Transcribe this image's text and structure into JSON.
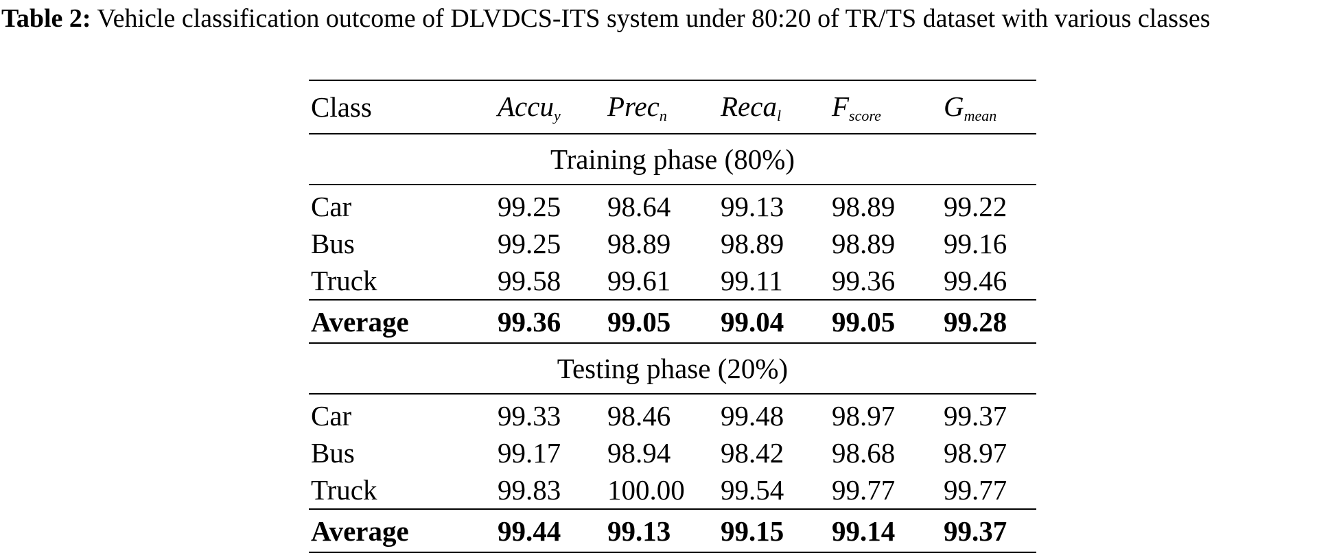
{
  "caption": {
    "label": "Table 2:",
    "text": "Vehicle classification outcome of DLVDCS-ITS system under 80:20 of TR/TS dataset with various classes"
  },
  "table": {
    "columns": [
      {
        "label": "Class"
      },
      {
        "base": "Accu",
        "sub": "y"
      },
      {
        "base": "Prec",
        "sub": "n"
      },
      {
        "base": "Reca",
        "sub": "l"
      },
      {
        "base": "F",
        "sub": "score"
      },
      {
        "base": "G",
        "sub": "mean"
      }
    ],
    "sections": [
      {
        "title": "Training phase (80%)",
        "rows": [
          {
            "class": "Car",
            "values": [
              "99.25",
              "98.64",
              "99.13",
              "98.89",
              "99.22"
            ]
          },
          {
            "class": "Bus",
            "values": [
              "99.25",
              "98.89",
              "98.89",
              "98.89",
              "99.16"
            ]
          },
          {
            "class": "Truck",
            "values": [
              "99.58",
              "99.61",
              "99.11",
              "99.36",
              "99.46"
            ]
          }
        ],
        "average": {
          "class": "Average",
          "values": [
            "99.36",
            "99.05",
            "99.04",
            "99.05",
            "99.28"
          ]
        }
      },
      {
        "title": "Testing phase (20%)",
        "rows": [
          {
            "class": "Car",
            "values": [
              "99.33",
              "98.46",
              "99.48",
              "98.97",
              "99.37"
            ]
          },
          {
            "class": "Bus",
            "values": [
              "99.17",
              "98.94",
              "98.42",
              "98.68",
              "98.97"
            ]
          },
          {
            "class": "Truck",
            "values": [
              "99.83",
              "100.00",
              "99.54",
              "99.77",
              "99.77"
            ]
          }
        ],
        "average": {
          "class": "Average",
          "values": [
            "99.44",
            "99.13",
            "99.15",
            "99.14",
            "99.37"
          ]
        }
      }
    ]
  }
}
